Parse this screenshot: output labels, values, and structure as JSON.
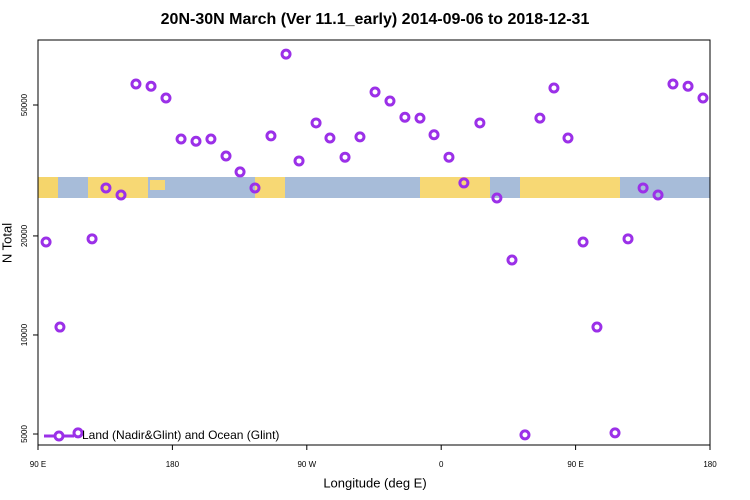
{
  "chart_data": {
    "type": "scatter",
    "title": "20N-30N March (Ver 11.1_early)   2014-09-06 to 2018-12-31",
    "x_label": "Longitude (deg E)",
    "y_label": "N Total",
    "log_y": true,
    "legend": "bottom-left",
    "xlim": [
      90,
      540
    ],
    "ylim": [
      4630,
      78800
    ],
    "xticks": [
      {
        "value": 90,
        "label": "90 E"
      },
      180,
      {
        "value": 270,
        "label": "90 W"
      },
      {
        "value": 360,
        "label": "0"
      },
      {
        "value": 450,
        "label": "90 E"
      },
      {
        "value": 540,
        "label": "180"
      }
    ],
    "yticks": [
      5000,
      10000,
      20000,
      50000
    ],
    "series": [
      {
        "name": "Land (Nadir&Glint) and Ocean (Glint)",
        "color": "#9b30e8",
        "x": [
          95.4,
          104.7,
          116.8,
          126.2,
          135.5,
          145.6,
          155.6,
          165.7,
          175.7,
          185.8,
          195.8,
          205.8,
          215.9,
          225.3,
          235.3,
          246.0,
          256.1,
          264.8,
          276.2,
          285.5,
          295.6,
          305.6,
          315.7,
          325.7,
          335.7,
          345.8,
          355.2,
          365.2,
          375.2,
          385.9,
          397.3,
          407.4,
          416.1,
          426.1,
          435.5,
          444.9,
          455.0,
          464.3,
          476.4,
          485.1,
          495.2,
          505.2,
          515.2,
          525.3,
          535.3
        ],
        "values": [
          19170,
          10570,
          5040,
          19600,
          27980,
          26640,
          57900,
          57000,
          52500,
          39400,
          38800,
          39400,
          35000,
          31300,
          27980,
          40270,
          71400,
          33800,
          44100,
          39700,
          34700,
          40000,
          54750,
          51400,
          45900,
          45600,
          40600,
          34700,
          28980,
          44100,
          26080,
          16900,
          4970,
          45600,
          56300,
          39700,
          19170,
          10570,
          5040,
          19600,
          27980,
          26640,
          57900,
          57000,
          52500
        ]
      }
    ]
  }
}
